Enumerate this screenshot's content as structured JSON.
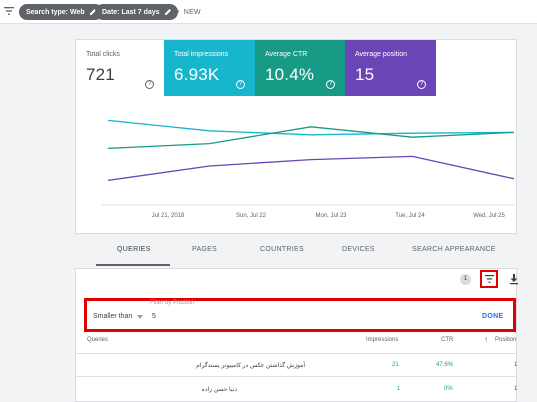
{
  "filter_bar": {
    "chips": [
      {
        "label": "Search type: Web"
      },
      {
        "label": "Date: Last 7 days"
      }
    ],
    "new_label": "NEW"
  },
  "metrics": {
    "clicks": {
      "label": "Total clicks",
      "value": "721"
    },
    "impressions": {
      "label": "Total impressions",
      "value": "6.93K"
    },
    "ctr": {
      "label": "Average CTR",
      "value": "10.4%"
    },
    "position": {
      "label": "Average position",
      "value": "15"
    },
    "help_glyph": "?"
  },
  "chart_data": {
    "type": "line",
    "x": [
      "Jul 21, 2018",
      "Sun, Jul 22",
      "Mon, Jul 23",
      "Tue, Jul 24",
      "Wed, Jul 25"
    ],
    "x_labels": [
      "Jul 21, 2018",
      "Sun, Jul 22",
      "Mon, Jul 23",
      "Tue, Jul 24",
      "Wed, Jul 25"
    ],
    "series_colors": {
      "impressions": "#17b6cd",
      "ctr": "#179a86",
      "position": "#6a45b6"
    },
    "series": [
      {
        "key": "impressions",
        "values": [
          0.87,
          0.74,
          0.69,
          0.71,
          0.72
        ]
      },
      {
        "key": "ctr",
        "values": [
          0.52,
          0.58,
          0.79,
          0.66,
          0.72
        ]
      },
      {
        "key": "position",
        "values": [
          0.12,
          0.3,
          0.38,
          0.42,
          0.14
        ]
      }
    ],
    "ylim": [
      0,
      1
    ],
    "grid": false,
    "y_axis_labels_shown": false
  },
  "tabs": [
    {
      "label": "QUERIES",
      "active": true
    },
    {
      "label": "PAGES",
      "active": false
    },
    {
      "label": "COUNTRIES",
      "active": false
    },
    {
      "label": "DEVICES",
      "active": false
    },
    {
      "label": "SEARCH APPEARANCE",
      "active": false
    }
  ],
  "table": {
    "active_filter_count": "1",
    "filter": {
      "label": "Filter by Position",
      "operator": "Smaller than",
      "value": "5",
      "done_label": "DONE"
    },
    "columns": {
      "queries": "Queries",
      "impressions": "Impressions",
      "ctr": "CTR",
      "position": "Position",
      "sort_arrow": "↑"
    },
    "rows": [
      {
        "query": "آموزش گذاشتن عکس در کامپیوتر پسندگرام",
        "impressions": "21",
        "ctr": "47.6%",
        "position": "1"
      },
      {
        "query": "دنیا حسن زاده",
        "impressions": "1",
        "ctr": "0%",
        "position": "1"
      }
    ]
  },
  "icons": {
    "filter": "filter-lines-icon",
    "edit": "pencil-icon",
    "add": "plus-icon",
    "download": "download-icon",
    "help": "help-circle-icon"
  },
  "colors": {
    "impressions": "#17b6cd",
    "ctr": "#179a86",
    "position": "#6a45b6",
    "highlight": "#e00000",
    "chip_bg": "#5f6368",
    "link_blue": "#1a73e8"
  }
}
